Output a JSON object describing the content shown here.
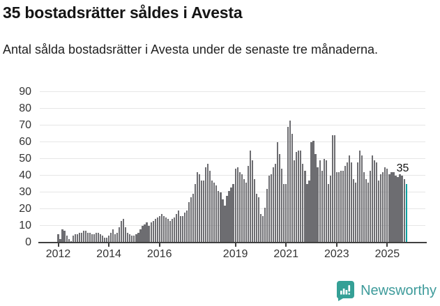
{
  "header": {
    "title": "35 bostadsrätter såldes i Avesta",
    "subtitle": "Antal sålda bostadsrätter i Avesta under de senaste tre månaderna."
  },
  "chart_data": {
    "type": "bar",
    "title": "35 bostadsrätter såldes i Avesta",
    "subtitle": "Antal sålda bostadsrätter i Avesta under de senaste tre månaderna.",
    "x_start_month": "2012-01",
    "x_end_month": "2025-10",
    "values": [
      5,
      2,
      8,
      7,
      4,
      2,
      1,
      4,
      5,
      5,
      6,
      6,
      7,
      7,
      6,
      6,
      5,
      5,
      6,
      6,
      5,
      4,
      3,
      3,
      4,
      6,
      8,
      5,
      6,
      9,
      13,
      14,
      9,
      6,
      5,
      4,
      4,
      5,
      6,
      8,
      10,
      11,
      12,
      10,
      12,
      13,
      14,
      15,
      16,
      17,
      16,
      15,
      14,
      13,
      14,
      15,
      17,
      19,
      16,
      16,
      18,
      19,
      24,
      27,
      29,
      35,
      42,
      41,
      37,
      37,
      45,
      47,
      43,
      37,
      36,
      34,
      31,
      30,
      26,
      22,
      28,
      31,
      33,
      35,
      44,
      45,
      42,
      41,
      38,
      36,
      46,
      55,
      49,
      38,
      29,
      27,
      17,
      16,
      21,
      32,
      40,
      41,
      45,
      47,
      60,
      53,
      44,
      35,
      35,
      69,
      73,
      65,
      49,
      54,
      55,
      55,
      47,
      43,
      35,
      37,
      60,
      61,
      53,
      45,
      49,
      43,
      50,
      49,
      35,
      40,
      64,
      64,
      42,
      42,
      43,
      43,
      46,
      48,
      52,
      48,
      38,
      36,
      48,
      55,
      52,
      42,
      38,
      36,
      43,
      52,
      49,
      48,
      37,
      41,
      42,
      45,
      44,
      41,
      42,
      42,
      40,
      39,
      41,
      40,
      38,
      35
    ],
    "highlight_last_bar": true,
    "last_value_label": "35",
    "ylim": [
      0,
      90
    ],
    "yticks": [
      0,
      10,
      20,
      30,
      40,
      50,
      60,
      70,
      80,
      90
    ],
    "xticks": [
      2012,
      2014,
      2016,
      2019,
      2021,
      2023,
      2025
    ],
    "grid": true,
    "legend": "none",
    "bar_color": "#6d6d71",
    "highlight_color": "#0a9e9e",
    "axis_color": "#404040",
    "gridline_color": "#e6e6e6"
  },
  "footer": {
    "brand": "Newsworthy",
    "brand_color": "#3e9b9b",
    "logo_icon": "speech-bubble-bar-chart-icon"
  }
}
